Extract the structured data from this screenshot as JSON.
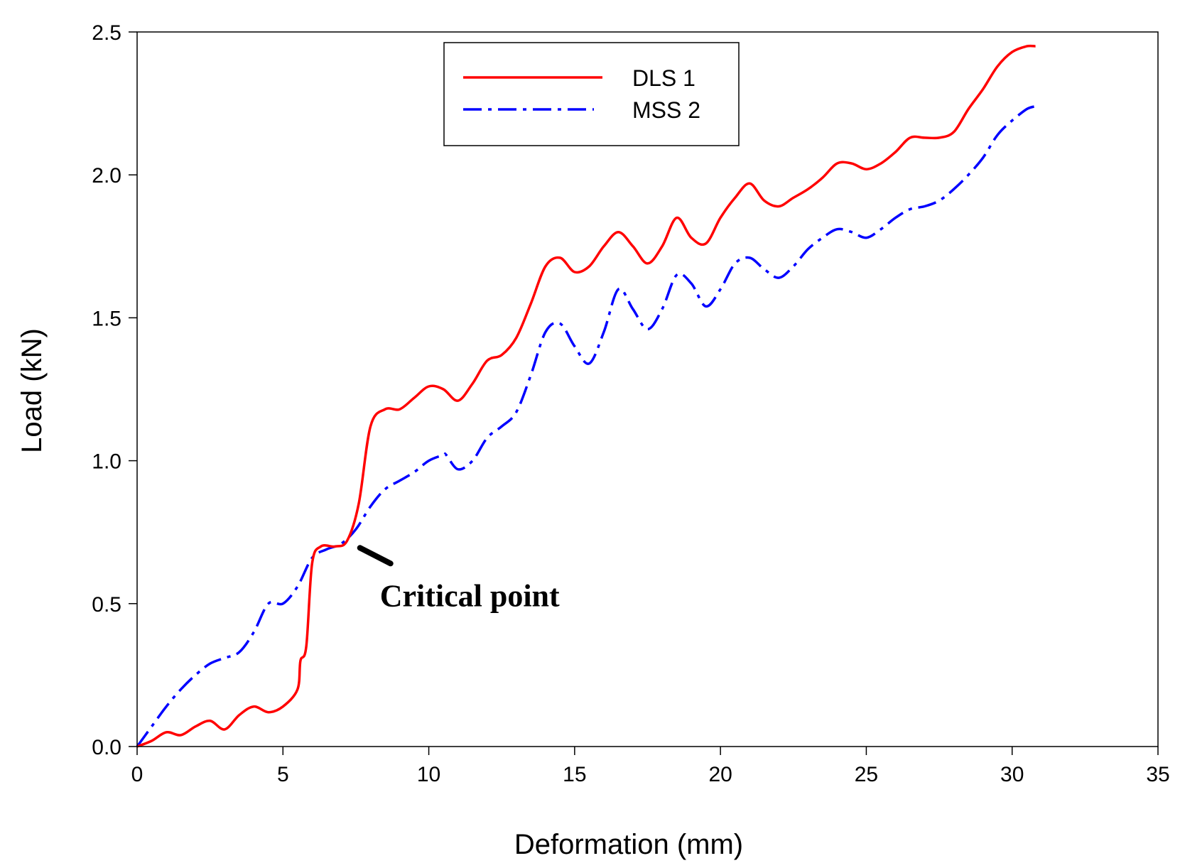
{
  "chart_data": {
    "type": "line",
    "title": "",
    "xlabel": "Deformation (mm)",
    "ylabel": "Load (kN)",
    "xlim": [
      0,
      35
    ],
    "ylim": [
      0,
      2.5
    ],
    "xticks": [
      0,
      5,
      10,
      15,
      20,
      25,
      30,
      35
    ],
    "yticks": [
      0.0,
      0.5,
      1.0,
      1.5,
      2.0,
      2.5
    ],
    "xtick_labels": [
      "0",
      "5",
      "10",
      "15",
      "20",
      "25",
      "30",
      "35"
    ],
    "ytick_labels": [
      "0.0",
      "0.5",
      "1.0",
      "1.5",
      "2.0",
      "2.5"
    ],
    "grid": false,
    "legend_position": "top-center",
    "series": [
      {
        "name": "DLS 1",
        "color": "#ff0000",
        "style": "solid",
        "x": [
          0,
          0.5,
          1.0,
          1.5,
          2.0,
          2.5,
          3.0,
          3.5,
          4.0,
          4.5,
          5.0,
          5.5,
          5.6,
          5.8,
          6.0,
          6.3,
          6.8,
          7.2,
          7.6,
          8.0,
          8.5,
          9.0,
          9.5,
          10.0,
          10.5,
          11.0,
          11.5,
          12.0,
          12.5,
          13.0,
          13.5,
          14.0,
          14.5,
          15.0,
          15.5,
          16.0,
          16.5,
          17.0,
          17.5,
          18.0,
          18.5,
          19.0,
          19.5,
          20.0,
          20.5,
          21.0,
          21.5,
          22.0,
          22.5,
          23.0,
          23.5,
          24.0,
          24.5,
          25.0,
          25.5,
          26.0,
          26.5,
          27.0,
          27.5,
          28.0,
          28.5,
          29.0,
          29.5,
          30.0,
          30.5,
          30.8
        ],
        "y": [
          0.0,
          0.02,
          0.05,
          0.04,
          0.07,
          0.09,
          0.06,
          0.11,
          0.14,
          0.12,
          0.14,
          0.2,
          0.3,
          0.35,
          0.64,
          0.7,
          0.7,
          0.72,
          0.85,
          1.12,
          1.18,
          1.18,
          1.22,
          1.26,
          1.25,
          1.21,
          1.27,
          1.35,
          1.37,
          1.43,
          1.55,
          1.68,
          1.71,
          1.66,
          1.68,
          1.75,
          1.8,
          1.75,
          1.69,
          1.75,
          1.85,
          1.78,
          1.76,
          1.85,
          1.92,
          1.97,
          1.91,
          1.89,
          1.92,
          1.95,
          1.99,
          2.04,
          2.04,
          2.02,
          2.04,
          2.08,
          2.13,
          2.13,
          2.13,
          2.15,
          2.23,
          2.3,
          2.38,
          2.43,
          2.45,
          2.45
        ]
      },
      {
        "name": "MSS 2",
        "color": "#0000ff",
        "style": "dash-dot",
        "x": [
          0,
          0.5,
          1.0,
          1.5,
          2.0,
          2.5,
          3.0,
          3.5,
          4.0,
          4.5,
          5.0,
          5.5,
          6.0,
          6.5,
          7.0,
          7.5,
          8.0,
          8.5,
          9.0,
          9.5,
          10.0,
          10.5,
          10.6,
          11.0,
          11.5,
          12.0,
          12.5,
          13.0,
          13.5,
          14.0,
          14.5,
          15.0,
          15.5,
          16.0,
          16.5,
          17.0,
          17.5,
          18.0,
          18.5,
          19.0,
          19.5,
          20.0,
          20.5,
          21.0,
          21.5,
          22.0,
          22.5,
          23.0,
          23.5,
          24.0,
          24.5,
          25.0,
          25.5,
          26.0,
          26.5,
          27.0,
          27.5,
          28.0,
          28.5,
          29.0,
          29.5,
          30.0,
          30.5,
          30.8
        ],
        "y": [
          0.0,
          0.07,
          0.14,
          0.2,
          0.25,
          0.29,
          0.31,
          0.33,
          0.4,
          0.5,
          0.5,
          0.56,
          0.66,
          0.69,
          0.71,
          0.76,
          0.84,
          0.9,
          0.93,
          0.96,
          1.0,
          1.02,
          1.02,
          0.97,
          1.0,
          1.08,
          1.12,
          1.17,
          1.3,
          1.45,
          1.48,
          1.4,
          1.34,
          1.45,
          1.6,
          1.53,
          1.46,
          1.53,
          1.65,
          1.62,
          1.54,
          1.6,
          1.69,
          1.71,
          1.67,
          1.64,
          1.68,
          1.74,
          1.78,
          1.81,
          1.8,
          1.78,
          1.81,
          1.85,
          1.88,
          1.89,
          1.91,
          1.95,
          2.0,
          2.06,
          2.14,
          2.19,
          2.23,
          2.24
        ]
      }
    ],
    "annotation": {
      "text": "Critical point",
      "x": 7.3,
      "y": 0.72
    }
  }
}
